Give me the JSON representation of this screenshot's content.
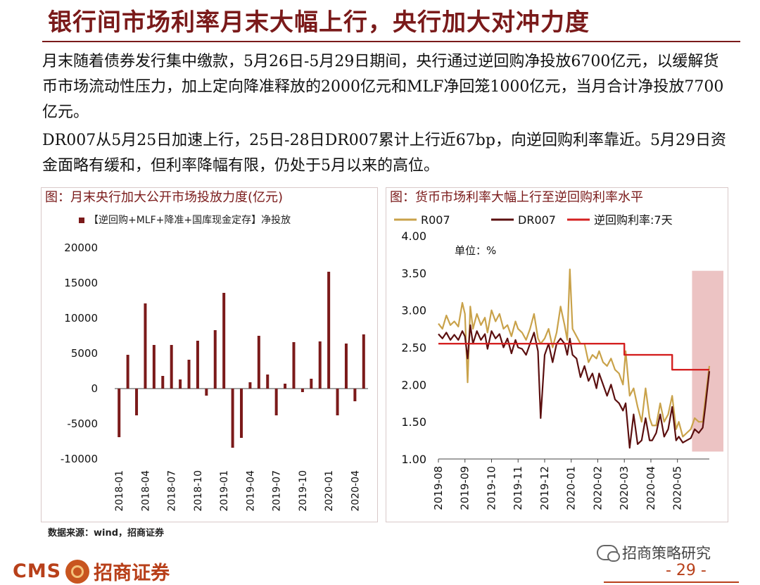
{
  "slide": {
    "title": "银行间市场利率月末大幅上行，央行加大对冲力度",
    "paragraph1": "月末随着债券发行集中缴款，5月26日-5月29日期间，央行通过逆回购净投放6700亿元，以缓解货币市场流动性压力，加上定向降准释放的2000亿元和MLF净回笼1000亿元，当月合计净投放7700亿元。",
    "paragraph2": "DR007从5月25日加速上行，25日-28日DR007累计上行近67bp，向逆回购利率靠近。5月29日资金面略有缓和，但利率降幅有限，仍处于5月以来的高位。",
    "source": "数据来源：wind，招商证券",
    "page_number": "- 29 -",
    "logo_latin": "CMS",
    "logo_chinese": "招商证券",
    "wechat_account": "招商策略研究"
  },
  "colors": {
    "accent": "#7a1a1a",
    "bar": "#7b1a1a",
    "r007": "#c9a24a",
    "dr007": "#5b0f0f",
    "repo": "#d42020",
    "highlight": "#e9b8b8"
  },
  "chart_data": [
    {
      "type": "bar",
      "title": "图：月末央行加大公开市场投放力度(亿元)",
      "legend": "【逆回购+MLF+降准+国库现金定存】净投放",
      "categories": [
        "2018-01",
        "2018-02",
        "2018-03",
        "2018-04",
        "2018-05",
        "2018-06",
        "2018-07",
        "2018-08",
        "2018-09",
        "2018-10",
        "2018-11",
        "2018-12",
        "2019-01",
        "2019-02",
        "2019-03",
        "2019-04",
        "2019-05",
        "2019-06",
        "2019-07",
        "2019-08",
        "2019-09",
        "2019-10",
        "2019-11",
        "2019-12",
        "2020-01",
        "2020-02",
        "2020-03",
        "2020-04",
        "2020-05"
      ],
      "x_tick_labels": [
        "2018-01",
        "2018-04",
        "2018-07",
        "2018-10",
        "2019-01",
        "2019-04",
        "2019-07",
        "2019-10",
        "2020-01",
        "2020-04"
      ],
      "series": [
        {
          "name": "【逆回购+MLF+降准+国库现金定存】净投放",
          "values": [
            -6900,
            4800,
            -3800,
            12100,
            6200,
            1800,
            6200,
            1300,
            4100,
            6800,
            -1000,
            8300,
            13600,
            -8400,
            -7000,
            900,
            7500,
            2000,
            -3800,
            700,
            6600,
            -500,
            1400,
            6700,
            16600,
            -3800,
            6400,
            -1800,
            7700
          ]
        }
      ],
      "ylim": [
        -10000,
        20000
      ],
      "yticks": [
        -10000,
        -5000,
        0,
        5000,
        10000,
        15000,
        20000
      ]
    },
    {
      "type": "line",
      "title": "图：货币市场利率大幅上行至逆回购利率水平",
      "unit_label": "单位：%",
      "ylim": [
        1.0,
        4.0
      ],
      "yticks": [
        "1.00",
        "1.50",
        "2.00",
        "2.50",
        "3.00",
        "3.50",
        "4.00"
      ],
      "x_tick_labels": [
        "2019-08",
        "2019-09",
        "2019-10",
        "2019-11",
        "2019-12",
        "2020-01",
        "2020-02",
        "2020-03",
        "2020-04",
        "2020-05"
      ],
      "x_range_months": [
        0,
        10.2
      ],
      "highlight_months": [
        9.55,
        10.2
      ],
      "series": [
        {
          "name": "R007",
          "x": [
            0,
            0.15,
            0.3,
            0.45,
            0.6,
            0.75,
            0.9,
            1.0,
            1.1,
            1.2,
            1.3,
            1.45,
            1.6,
            1.75,
            1.85,
            2.0,
            2.15,
            2.3,
            2.45,
            2.6,
            2.75,
            2.9,
            3.0,
            3.15,
            3.3,
            3.45,
            3.6,
            3.75,
            3.85,
            4.0,
            4.15,
            4.3,
            4.45,
            4.6,
            4.75,
            4.85,
            4.95,
            5.05,
            5.2,
            5.35,
            5.5,
            5.65,
            5.8,
            5.95,
            6.05,
            6.2,
            6.35,
            6.5,
            6.65,
            6.8,
            6.95,
            7.05,
            7.2,
            7.35,
            7.5,
            7.65,
            7.8,
            7.95,
            8.05,
            8.2,
            8.35,
            8.5,
            8.65,
            8.8,
            8.95,
            9.05,
            9.2,
            9.35,
            9.5,
            9.65,
            9.8,
            9.95,
            10.05,
            10.2
          ],
          "values": [
            2.82,
            2.75,
            2.93,
            2.8,
            2.85,
            2.78,
            3.1,
            2.95,
            2.03,
            3.05,
            2.75,
            2.95,
            2.8,
            2.9,
            2.7,
            3.0,
            2.85,
            2.95,
            2.75,
            2.8,
            2.65,
            2.85,
            2.75,
            2.7,
            2.6,
            2.75,
            2.95,
            2.62,
            2.55,
            2.62,
            2.75,
            2.5,
            2.7,
            3.05,
            2.8,
            2.6,
            3.55,
            2.75,
            2.65,
            2.55,
            2.55,
            2.3,
            2.4,
            2.35,
            2.45,
            2.3,
            2.25,
            2.35,
            2.2,
            2.15,
            2.0,
            2.45,
            1.85,
            1.95,
            1.7,
            1.5,
            1.95,
            1.55,
            1.45,
            1.45,
            1.75,
            1.5,
            1.6,
            1.85,
            1.4,
            1.5,
            1.3,
            1.35,
            1.4,
            1.55,
            1.5,
            1.5,
            1.8,
            2.25
          ]
        },
        {
          "name": "DR007",
          "x": [
            0,
            0.15,
            0.3,
            0.45,
            0.6,
            0.75,
            0.9,
            1.0,
            1.1,
            1.2,
            1.3,
            1.45,
            1.6,
            1.75,
            1.85,
            2.0,
            2.15,
            2.3,
            2.45,
            2.6,
            2.75,
            2.9,
            3.0,
            3.15,
            3.3,
            3.45,
            3.6,
            3.75,
            3.85,
            4.0,
            4.15,
            4.3,
            4.45,
            4.6,
            4.75,
            4.85,
            4.95,
            5.05,
            5.2,
            5.35,
            5.5,
            5.65,
            5.8,
            5.95,
            6.05,
            6.2,
            6.35,
            6.5,
            6.65,
            6.8,
            6.95,
            7.05,
            7.2,
            7.35,
            7.5,
            7.65,
            7.8,
            7.95,
            8.05,
            8.2,
            8.35,
            8.5,
            8.65,
            8.8,
            8.95,
            9.05,
            9.2,
            9.35,
            9.5,
            9.65,
            9.8,
            9.95,
            10.05,
            10.2
          ],
          "values": [
            2.68,
            2.62,
            2.7,
            2.6,
            2.67,
            2.6,
            2.72,
            2.65,
            2.35,
            2.8,
            2.55,
            2.72,
            2.6,
            2.68,
            2.48,
            2.72,
            2.62,
            2.68,
            2.5,
            2.62,
            2.42,
            2.6,
            2.5,
            2.48,
            2.4,
            2.55,
            2.7,
            2.45,
            1.55,
            2.4,
            2.55,
            2.3,
            2.55,
            2.62,
            2.55,
            2.4,
            2.62,
            2.4,
            2.35,
            2.1,
            2.25,
            2.05,
            2.15,
            1.95,
            2.15,
            2.0,
            1.85,
            2.0,
            1.8,
            1.75,
            1.65,
            1.75,
            1.15,
            1.6,
            1.2,
            1.25,
            1.55,
            1.25,
            1.25,
            1.35,
            1.6,
            1.3,
            1.4,
            1.7,
            1.25,
            1.3,
            1.22,
            1.25,
            1.28,
            1.4,
            1.35,
            1.42,
            1.7,
            2.18
          ]
        },
        {
          "name": "逆回购利率:7天",
          "x": [
            0,
            7.0,
            7.0,
            8.8,
            8.8,
            10.2
          ],
          "values": [
            2.55,
            2.55,
            2.4,
            2.4,
            2.2,
            2.2
          ]
        }
      ]
    }
  ]
}
